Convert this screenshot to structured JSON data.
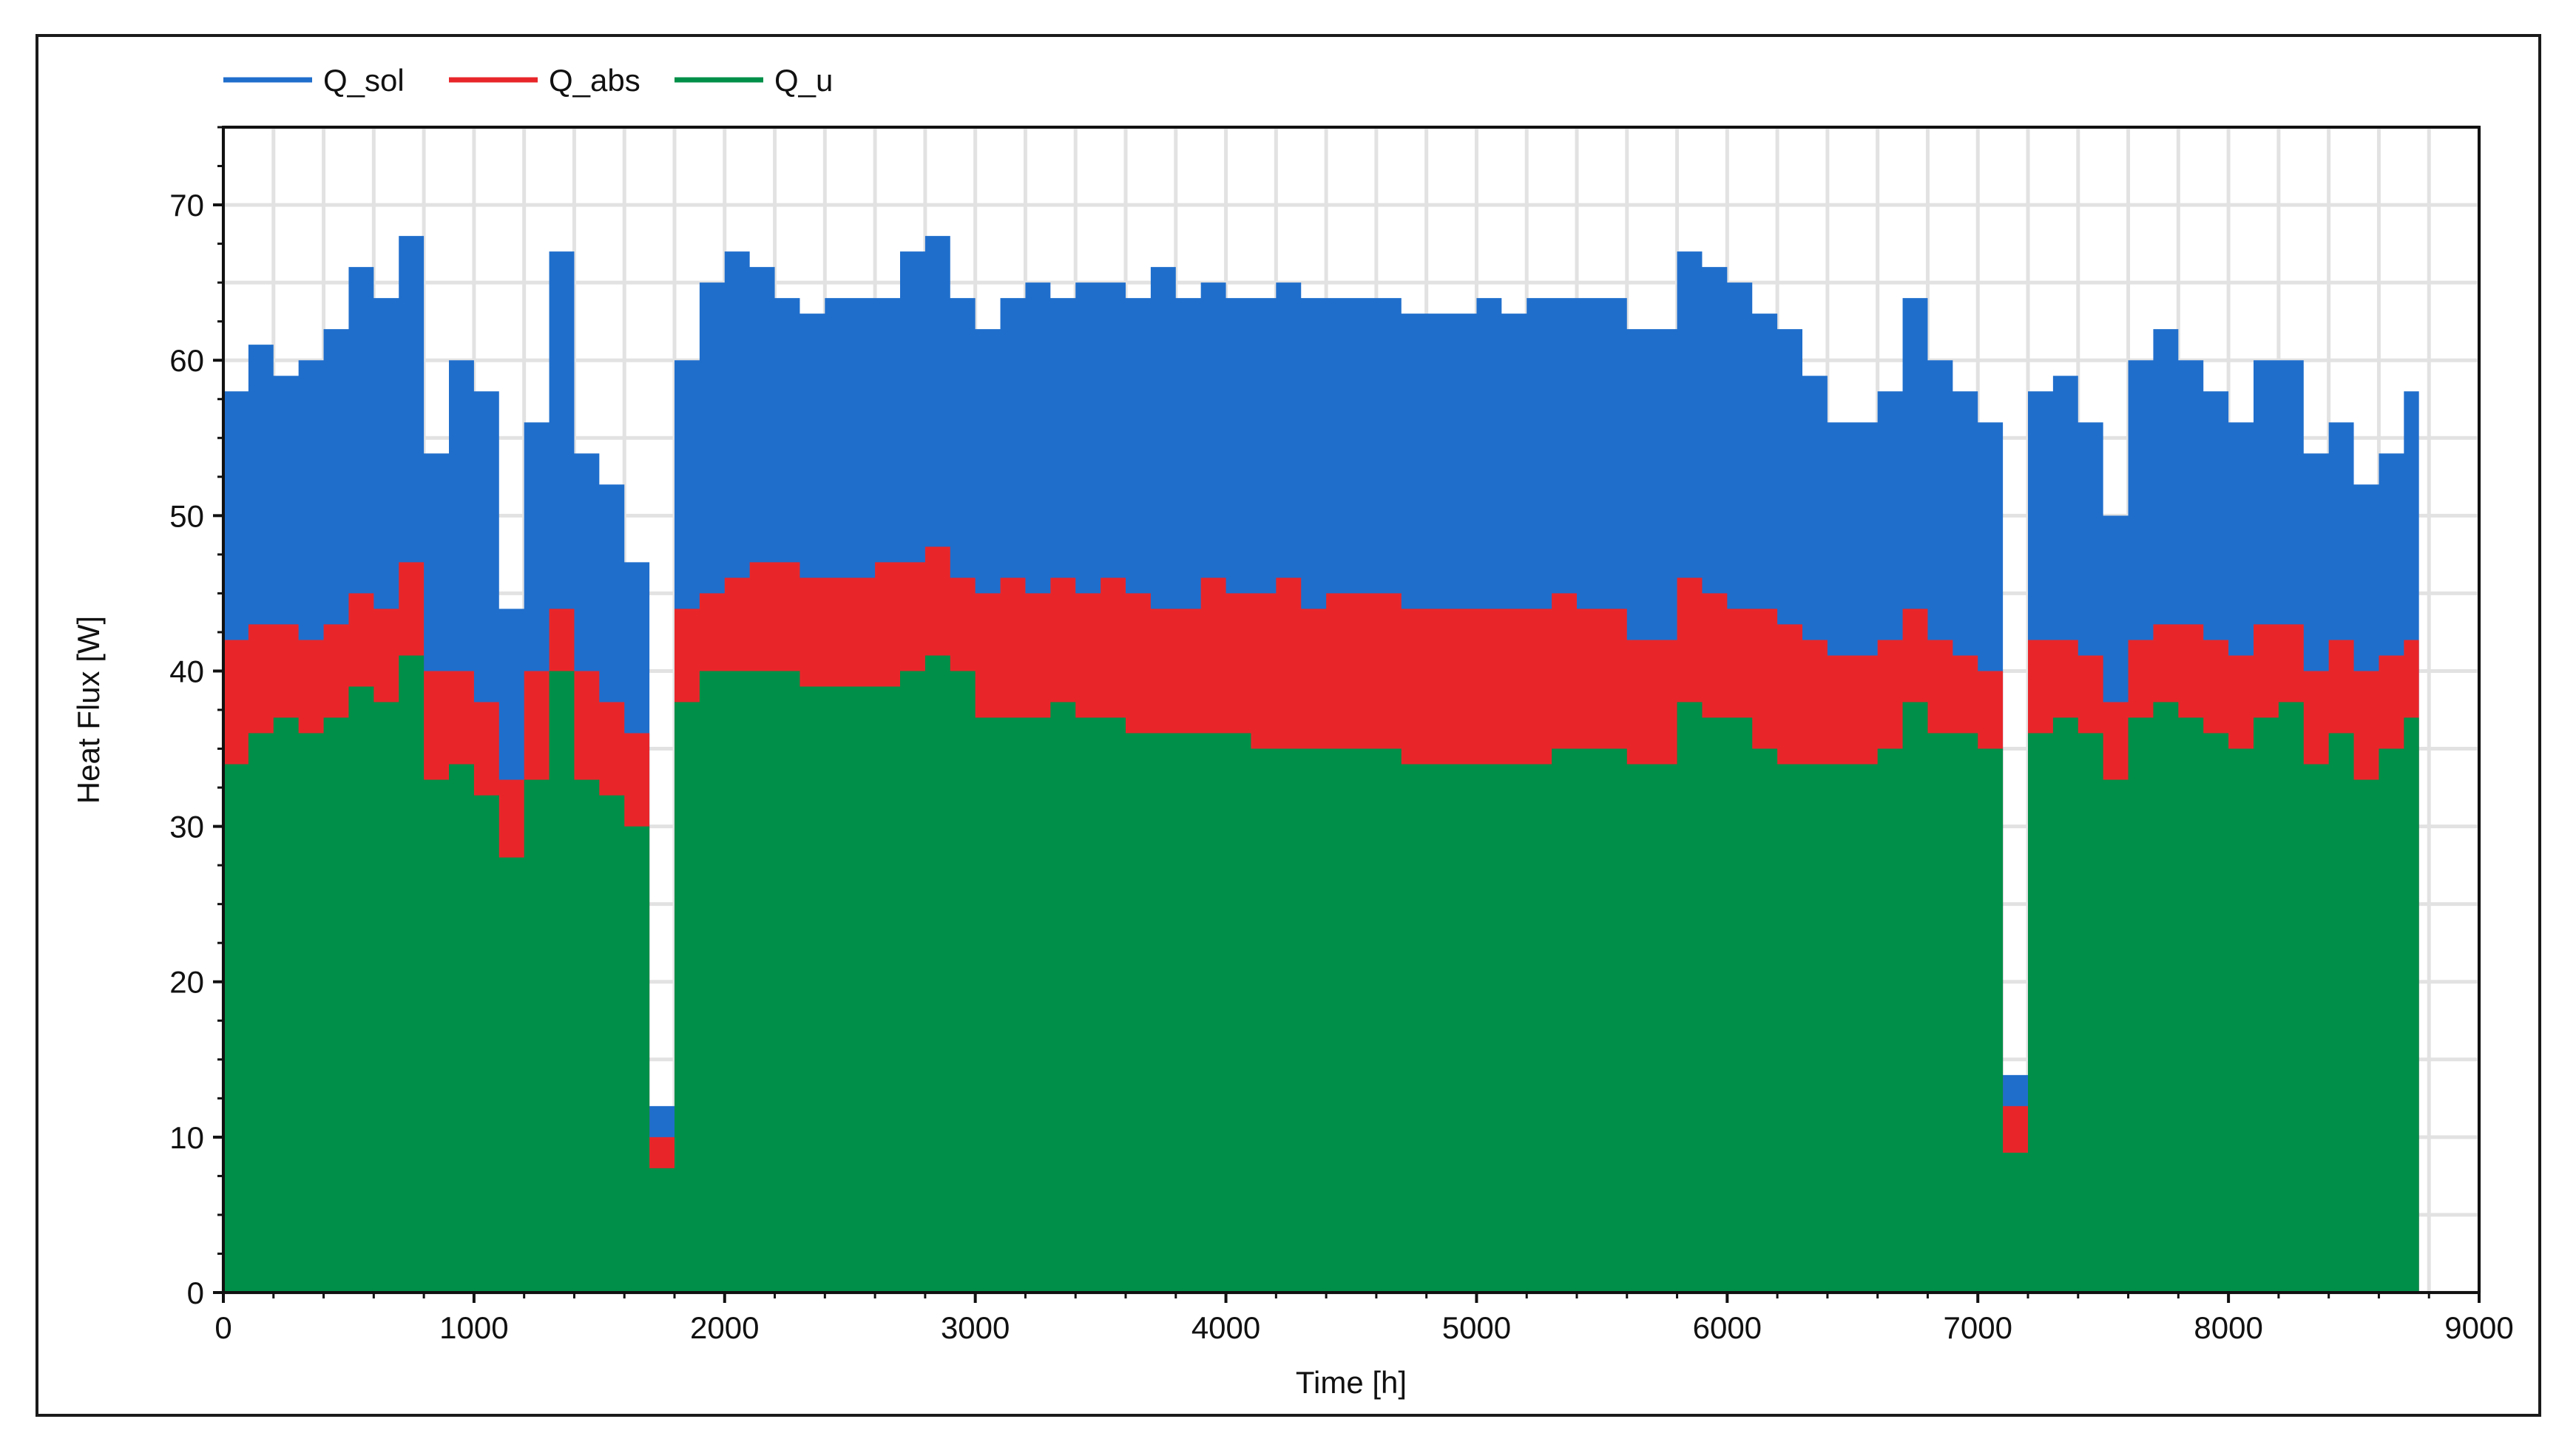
{
  "chart_data": {
    "type": "area",
    "xlabel": "Time [h]",
    "ylabel": "Heat Flux [W]",
    "xlim": [
      0,
      9000
    ],
    "ylim": [
      0,
      75
    ],
    "x_ticks": [
      0,
      1000,
      2000,
      3000,
      4000,
      5000,
      6000,
      7000,
      8000,
      9000
    ],
    "y_ticks": [
      0,
      10,
      20,
      30,
      40,
      50,
      60,
      70
    ],
    "grid": true,
    "legend_position": "top-left",
    "x": [
      0,
      100,
      200,
      300,
      400,
      500,
      600,
      700,
      800,
      900,
      1000,
      1100,
      1200,
      1300,
      1400,
      1500,
      1600,
      1700,
      1800,
      1900,
      2000,
      2100,
      2200,
      2300,
      2400,
      2500,
      2600,
      2700,
      2800,
      2900,
      3000,
      3100,
      3200,
      3300,
      3400,
      3500,
      3600,
      3700,
      3800,
      3900,
      4000,
      4100,
      4200,
      4300,
      4400,
      4500,
      4600,
      4700,
      4800,
      4900,
      5000,
      5100,
      5200,
      5300,
      5400,
      5500,
      5600,
      5700,
      5800,
      5900,
      6000,
      6100,
      6200,
      6300,
      6400,
      6500,
      6600,
      6700,
      6800,
      6900,
      7000,
      7100,
      7200,
      7300,
      7400,
      7500,
      7600,
      7700,
      7800,
      7900,
      8000,
      8100,
      8200,
      8300,
      8400,
      8500,
      8600,
      8700,
      8760
    ],
    "series": [
      {
        "name": "Q_sol",
        "color": "#1f6ecc",
        "values": [
          58,
          61,
          59,
          60,
          62,
          66,
          64,
          68,
          54,
          60,
          58,
          44,
          56,
          67,
          54,
          52,
          47,
          12,
          60,
          65,
          67,
          66,
          64,
          63,
          64,
          64,
          64,
          67,
          68,
          64,
          62,
          64,
          65,
          64,
          65,
          65,
          64,
          66,
          64,
          65,
          64,
          64,
          65,
          64,
          64,
          64,
          64,
          63,
          63,
          63,
          64,
          63,
          64,
          64,
          64,
          64,
          62,
          62,
          67,
          66,
          65,
          63,
          62,
          59,
          56,
          56,
          58,
          64,
          60,
          58,
          56,
          14,
          58,
          59,
          56,
          50,
          60,
          62,
          60,
          58,
          56,
          60,
          60,
          54,
          56,
          52,
          54,
          58,
          0
        ]
      },
      {
        "name": "Q_abs",
        "color": "#e8262a",
        "values": [
          42,
          43,
          43,
          42,
          43,
          45,
          44,
          47,
          40,
          40,
          38,
          33,
          40,
          44,
          40,
          38,
          36,
          10,
          44,
          45,
          46,
          47,
          47,
          46,
          46,
          46,
          47,
          47,
          48,
          46,
          45,
          46,
          45,
          46,
          45,
          46,
          45,
          44,
          44,
          46,
          45,
          45,
          46,
          44,
          45,
          45,
          45,
          44,
          44,
          44,
          44,
          44,
          44,
          45,
          44,
          44,
          42,
          42,
          46,
          45,
          44,
          44,
          43,
          42,
          41,
          41,
          42,
          44,
          42,
          41,
          40,
          12,
          42,
          42,
          41,
          38,
          42,
          43,
          43,
          42,
          41,
          43,
          43,
          40,
          42,
          40,
          41,
          42,
          0
        ]
      },
      {
        "name": "Q_u",
        "color": "#008f48",
        "values": [
          34,
          36,
          37,
          36,
          37,
          39,
          38,
          41,
          33,
          34,
          32,
          28,
          33,
          40,
          33,
          32,
          30,
          8,
          38,
          40,
          40,
          40,
          40,
          39,
          39,
          39,
          39,
          40,
          41,
          40,
          37,
          37,
          37,
          38,
          37,
          37,
          36,
          36,
          36,
          36,
          36,
          35,
          35,
          35,
          35,
          35,
          35,
          34,
          34,
          34,
          34,
          34,
          34,
          35,
          35,
          35,
          34,
          34,
          38,
          37,
          37,
          35,
          34,
          34,
          34,
          34,
          35,
          38,
          36,
          36,
          35,
          9,
          36,
          37,
          36,
          33,
          37,
          38,
          37,
          36,
          35,
          37,
          38,
          34,
          36,
          33,
          35,
          37,
          0
        ]
      }
    ]
  }
}
